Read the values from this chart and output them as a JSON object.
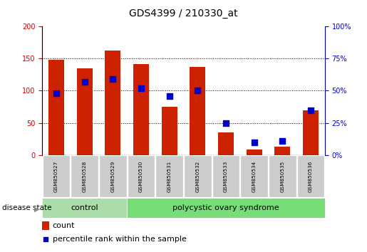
{
  "title": "GDS4399 / 210330_at",
  "samples": [
    "GSM850527",
    "GSM850528",
    "GSM850529",
    "GSM850530",
    "GSM850531",
    "GSM850532",
    "GSM850533",
    "GSM850534",
    "GSM850535",
    "GSM850536"
  ],
  "count": [
    148,
    135,
    163,
    141,
    75,
    137,
    35,
    8,
    13,
    70
  ],
  "percentile": [
    48,
    57,
    59,
    52,
    46,
    50,
    25,
    10,
    11,
    35
  ],
  "left_ylim": [
    0,
    200
  ],
  "right_ylim": [
    0,
    100
  ],
  "left_yticks": [
    0,
    50,
    100,
    150,
    200
  ],
  "right_yticks": [
    0,
    25,
    50,
    75,
    100
  ],
  "right_yticklabels": [
    "0%",
    "25%",
    "50%",
    "75%",
    "100%"
  ],
  "bar_color": "#cc2200",
  "dot_color": "#0000cc",
  "control_label": "control",
  "pcos_label": "polycystic ovary syndrome",
  "disease_state_label": "disease state",
  "legend_count": "count",
  "legend_percentile": "percentile rank within the sample",
  "control_color": "#aaddaa",
  "pcos_color": "#77dd77",
  "left_axis_color": "#cc0000",
  "right_axis_color": "#0000cc",
  "bar_width": 0.55,
  "dot_size": 28,
  "n_control": 3,
  "n_total": 10
}
